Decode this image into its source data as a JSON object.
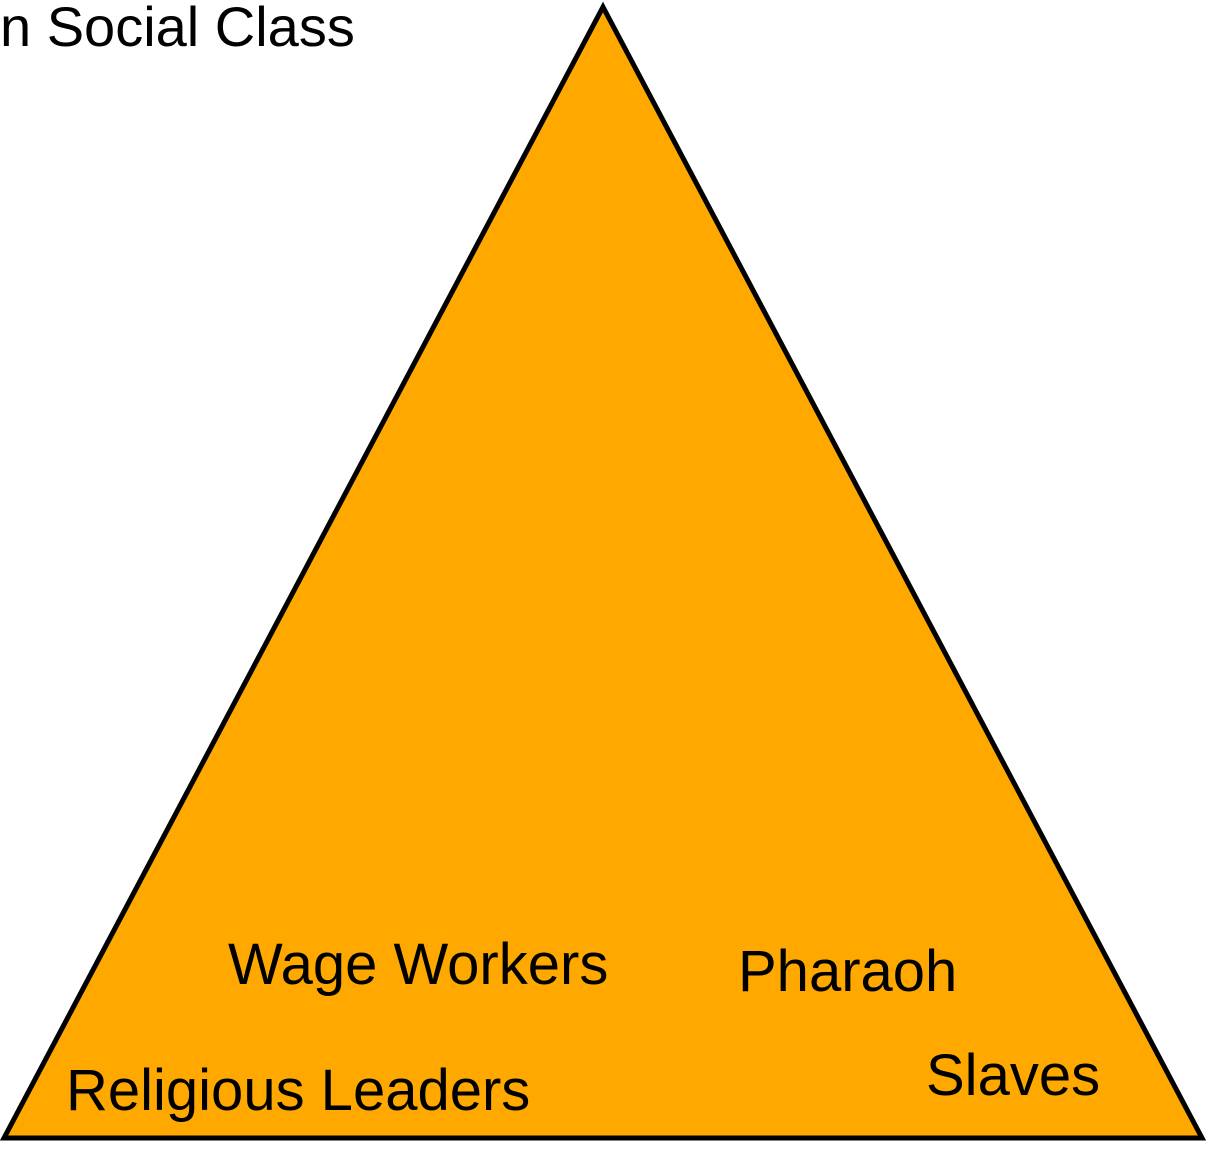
{
  "title": "n Social Class",
  "labels": [
    "Wage Workers",
    "Pharaoh",
    "Religious Leaders",
    "Slaves"
  ]
}
